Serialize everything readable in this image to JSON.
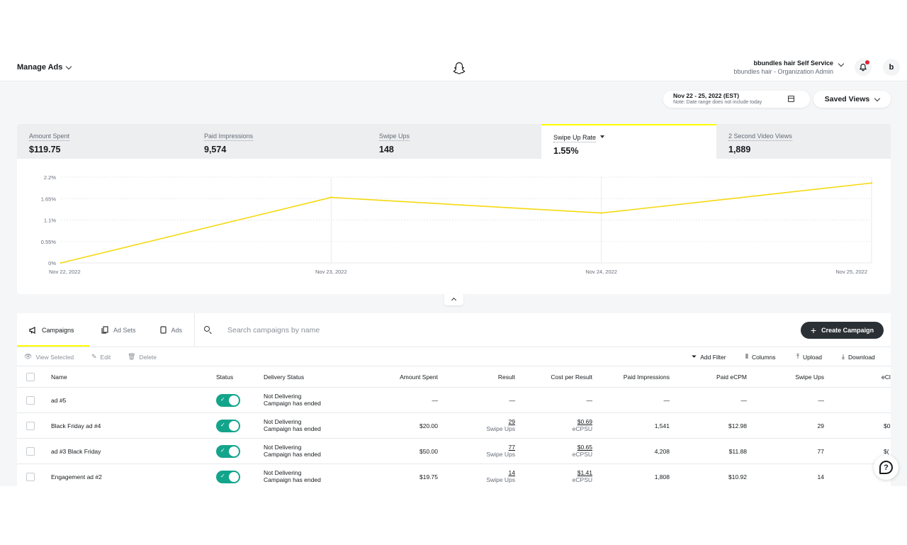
{
  "header": {
    "manage_ads": "Manage Ads",
    "account_name": "bbundles hair Self Service",
    "account_org": "bbundles hair - Organization Admin",
    "avatar_letter": "b",
    "ghost_icon": "snapchat-ghost-icon",
    "bell_icon": "bell-icon",
    "accent_color": "#fffc00"
  },
  "toolbar": {
    "date_range": "Nov 22 - 25, 2022 (EST)",
    "date_note": "Note: Date range does not include today",
    "saved_views": "Saved Views"
  },
  "metrics": [
    {
      "label": "Amount Spent",
      "value": "$119.75"
    },
    {
      "label": "Paid Impressions",
      "value": "9,574"
    },
    {
      "label": "Swipe Ups",
      "value": "148"
    },
    {
      "label": "Swipe Up Rate",
      "value": "1.55%",
      "active": true
    },
    {
      "label": "2 Second Video Views",
      "value": "1,889"
    }
  ],
  "chart_data": {
    "type": "line",
    "x": [
      "Nov 22, 2022",
      "Nov 23, 2022",
      "Nov 24, 2022",
      "Nov 25, 2022"
    ],
    "y_ticks": [
      "2.2%",
      "1.65%",
      "1.1%",
      "0.55%",
      "0%"
    ],
    "series": [
      {
        "values": [
          0,
          1.68,
          1.28,
          2.05
        ],
        "color": "#f5d90f"
      }
    ],
    "ylim": [
      0,
      2.2
    ],
    "grid": true
  },
  "tabs": [
    {
      "label": "Campaigns",
      "icon": "megaphone-icon"
    },
    {
      "label": "Ad Sets",
      "icon": "ad-sets-icon"
    },
    {
      "label": "Ads",
      "icon": "phone-icon"
    }
  ],
  "search": {
    "placeholder": "Search campaigns by name",
    "value": ""
  },
  "create_campaign": "Create Campaign",
  "actions": {
    "view_selected": "View Selected",
    "edit": "Edit",
    "delete": "Delete",
    "add_filter": "Add Filter",
    "columns": "Columns",
    "upload": "Upload",
    "download": "Download"
  },
  "table": {
    "headers": {
      "name": "Name",
      "status": "Status",
      "delivery": "Delivery Status",
      "amount": "Amount Spent",
      "result": "Result",
      "cpr": "Cost per Result",
      "impressions": "Paid Impressions",
      "ecpm": "Paid eCPM",
      "swipes": "Swipe Ups",
      "ecl": "eCl"
    },
    "rows": [
      {
        "name": "ad #5",
        "delivery": "Not Delivering",
        "delivery_sub": "Campaign has ended",
        "amount": "—",
        "result": "—",
        "result_sub": "",
        "cpr": "—",
        "cpr_sub": "",
        "impressions": "—",
        "ecpm": "—",
        "swipes": "—",
        "ecl": ""
      },
      {
        "name": "Black Friday ad #4",
        "delivery": "Not Delivering",
        "delivery_sub": "Campaign has ended",
        "amount": "$20.00",
        "result": "29",
        "result_sub": "Swipe Ups",
        "cpr": "$0.69",
        "cpr_sub": "eCPSU",
        "impressions": "1,541",
        "ecpm": "$12.98",
        "swipes": "29",
        "ecl": "$0"
      },
      {
        "name": "ad #3 Black Friday",
        "delivery": "Not Delivering",
        "delivery_sub": "Campaign has ended",
        "amount": "$50.00",
        "result": "77",
        "result_sub": "Swipe Ups",
        "cpr": "$0.65",
        "cpr_sub": "eCPSU",
        "impressions": "4,208",
        "ecpm": "$11.88",
        "swipes": "77",
        "ecl": "$("
      },
      {
        "name": "Engagement ad #2",
        "delivery": "Not Delivering",
        "delivery_sub": "Campaign has ended",
        "amount": "$19.75",
        "result": "14",
        "result_sub": "Swipe Ups",
        "cpr": "$1.41",
        "cpr_sub": "eCPSU",
        "impressions": "1,808",
        "ecpm": "$10.92",
        "swipes": "14",
        "ecl": "$"
      }
    ]
  },
  "help_icon": "help-chat-icon"
}
